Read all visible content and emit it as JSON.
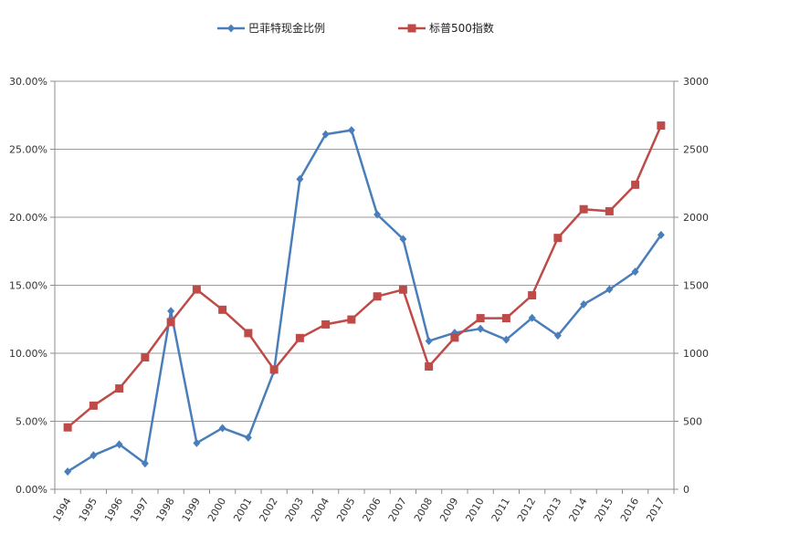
{
  "chart_data": {
    "type": "line",
    "categories": [
      "1994",
      "1995",
      "1996",
      "1997",
      "1998",
      "1999",
      "2000",
      "2001",
      "2002",
      "2003",
      "2004",
      "2005",
      "2006",
      "2007",
      "2008",
      "2009",
      "2010",
      "2011",
      "2012",
      "2013",
      "2014",
      "2015",
      "2016",
      "2017"
    ],
    "series": [
      {
        "name": "巴菲特现金比例",
        "axis": "left",
        "color": "#4a7ebb",
        "marker": "diamond",
        "values": [
          0.013,
          0.025,
          0.033,
          0.019,
          0.131,
          0.034,
          0.045,
          0.038,
          0.087,
          0.228,
          0.261,
          0.264,
          0.202,
          0.184,
          0.109,
          0.115,
          0.118,
          0.11,
          0.126,
          0.113,
          0.136,
          0.147,
          0.16,
          0.187
        ]
      },
      {
        "name": "标普500指数",
        "axis": "right",
        "color": "#be4b48",
        "marker": "square",
        "values": [
          455,
          615,
          741,
          970,
          1229,
          1469,
          1320,
          1148,
          880,
          1112,
          1212,
          1248,
          1418,
          1468,
          903,
          1115,
          1258,
          1258,
          1426,
          1848,
          2059,
          2044,
          2239,
          2674
        ]
      }
    ],
    "y_left": {
      "ylim": [
        0,
        0.3
      ],
      "ticks": [
        "0.00%",
        "5.00%",
        "10.00%",
        "15.00%",
        "20.00%",
        "25.00%",
        "30.00%"
      ]
    },
    "y_right": {
      "ylim": [
        0,
        3000
      ],
      "ticks": [
        "0",
        "500",
        "1000",
        "1500",
        "2000",
        "2500",
        "3000"
      ]
    },
    "grid": true,
    "legend_position": "top-center",
    "title": "",
    "xlabel": "",
    "ylabel": ""
  }
}
